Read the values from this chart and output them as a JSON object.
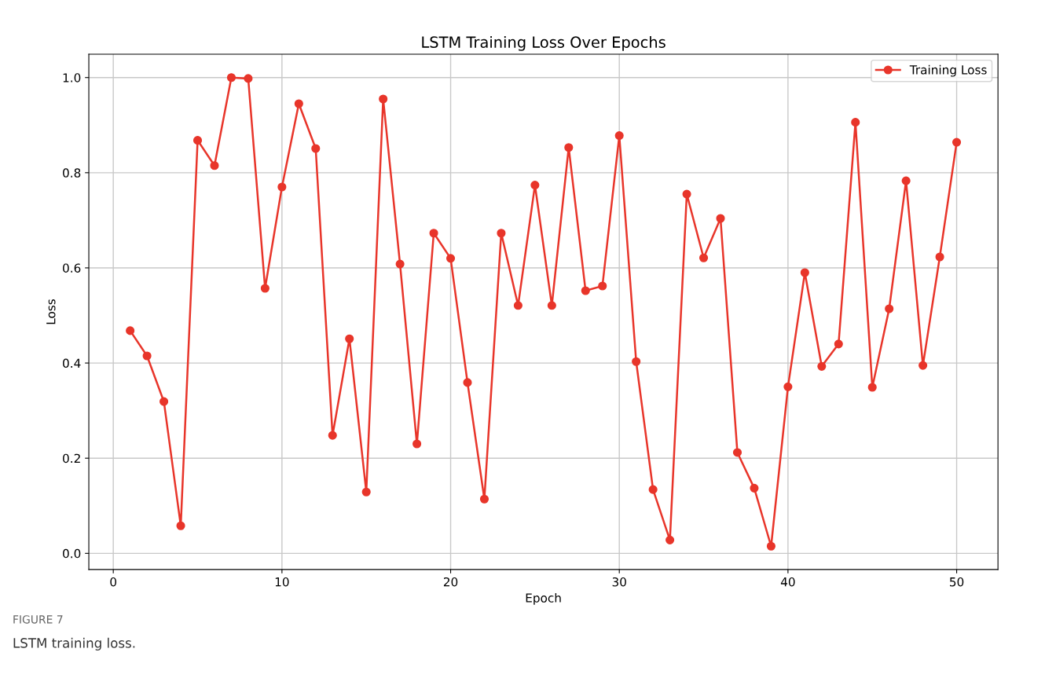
{
  "chart_data": {
    "type": "line",
    "title": "LSTM Training Loss Over Epochs",
    "xlabel": "Epoch",
    "ylabel": "Loss",
    "x": [
      1,
      2,
      3,
      4,
      5,
      6,
      7,
      8,
      9,
      10,
      11,
      12,
      13,
      14,
      15,
      16,
      17,
      18,
      19,
      20,
      21,
      22,
      23,
      24,
      25,
      26,
      27,
      28,
      29,
      30,
      31,
      32,
      33,
      34,
      35,
      36,
      37,
      38,
      39,
      40,
      41,
      42,
      43,
      44,
      45,
      46,
      47,
      48,
      49,
      50
    ],
    "series": [
      {
        "name": "Training Loss",
        "color": "#e8352a",
        "values": [
          0.468,
          0.415,
          0.319,
          0.058,
          0.868,
          0.815,
          1.0,
          0.998,
          0.557,
          0.77,
          0.945,
          0.851,
          0.248,
          0.451,
          0.129,
          0.955,
          0.608,
          0.23,
          0.673,
          0.62,
          0.359,
          0.114,
          0.673,
          0.521,
          0.774,
          0.521,
          0.853,
          0.552,
          0.562,
          0.878,
          0.403,
          0.134,
          0.028,
          0.755,
          0.621,
          0.704,
          0.212,
          0.137,
          0.015,
          0.35,
          0.59,
          0.393,
          0.44,
          0.906,
          0.349,
          0.514,
          0.783,
          0.395,
          0.623,
          0.864
        ]
      }
    ],
    "xlim": [
      -1.45,
      52.45
    ],
    "ylim": [
      -0.034,
      1.049
    ],
    "xticks": [
      0,
      10,
      20,
      30,
      40,
      50
    ],
    "yticks": [
      {
        "value": 0,
        "label": "0.0"
      },
      {
        "value": 0.2,
        "label": "0.2"
      },
      {
        "value": 0.4,
        "label": "0.4"
      },
      {
        "value": 0.6,
        "label": "0.6"
      },
      {
        "value": 0.8,
        "label": "0.8"
      },
      {
        "value": 1.0,
        "label": "1.0"
      }
    ],
    "grid": true,
    "legend": "top right",
    "marker": "circle",
    "line_style": "solid",
    "annotations": [
      "FIGURE 7",
      "LSTM training loss."
    ]
  }
}
